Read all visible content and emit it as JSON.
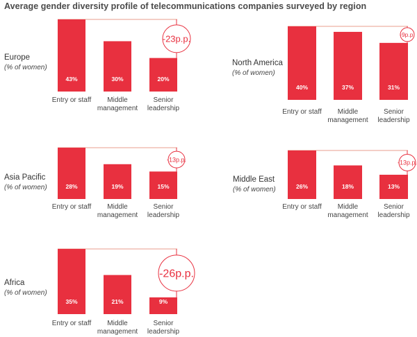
{
  "title": "Average gender diversity profile of telecommunications companies surveyed by region",
  "colors": {
    "bar": "#e8303f",
    "reference_line": "#eeb0a4",
    "gap_circle": "#e8303f",
    "text": "#444444"
  },
  "chart_data": {
    "type": "bar",
    "title": "Average gender diversity profile of telecommunications companies surveyed by region",
    "categories": [
      "Entry or staff",
      "Middle management",
      "Senior leadership"
    ],
    "unit": "% of women",
    "panels": [
      {
        "region": "Europe",
        "subtitle": "(% of women)",
        "values": [
          43,
          30,
          20
        ],
        "value_labels": [
          "43%",
          "30%",
          "20%"
        ],
        "gap_label": "-23p.p."
      },
      {
        "region": "North America",
        "subtitle": "(% of women)",
        "values": [
          40,
          37,
          31
        ],
        "value_labels": [
          "40%",
          "37%",
          "31%"
        ],
        "gap_label": "-9p.p."
      },
      {
        "region": "Asia Pacific",
        "subtitle": "(% of women)",
        "values": [
          28,
          19,
          15
        ],
        "value_labels": [
          "28%",
          "19%",
          "15%"
        ],
        "gap_label": "-13p.p."
      },
      {
        "region": "Middle East",
        "subtitle": "(% of women)",
        "values": [
          26,
          18,
          13
        ],
        "value_labels": [
          "26%",
          "18%",
          "13%"
        ],
        "gap_label": "-13p.p."
      },
      {
        "region": "Africa",
        "subtitle": "(% of women)",
        "values": [
          35,
          21,
          9
        ],
        "value_labels": [
          "35%",
          "21%",
          "9%"
        ],
        "gap_label": "-26p.p."
      }
    ],
    "category_lines": [
      [
        "Entry or staff"
      ],
      [
        "Middle",
        "management"
      ],
      [
        "Senior",
        "leadership"
      ]
    ]
  }
}
